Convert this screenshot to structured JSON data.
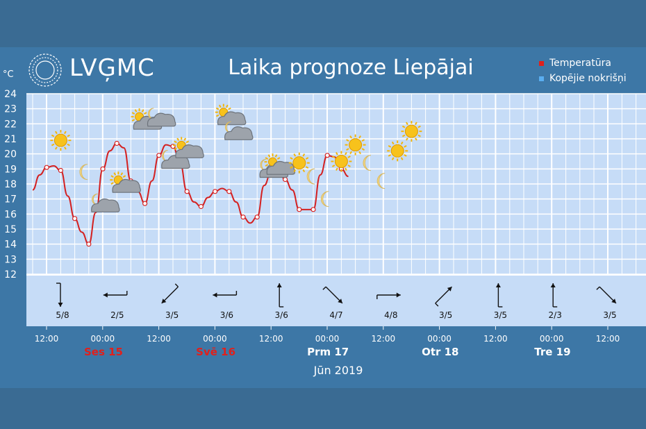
{
  "header": {
    "logo_text": "LVĢMC",
    "title": "Laika prognoze Liepājai",
    "unit": "°C",
    "legend": [
      {
        "label": "Temperatūra",
        "color": "#e0201c"
      },
      {
        "label": "Kopējie nokrišņi",
        "color": "#5aaef0"
      }
    ]
  },
  "chart_data": {
    "type": "line",
    "ylim": [
      12,
      24
    ],
    "yticks": [
      12,
      13,
      14,
      15,
      16,
      17,
      18,
      19,
      20,
      21,
      22,
      23,
      24
    ],
    "series": [
      {
        "name": "Temperatūra",
        "color": "#d42020",
        "x": [
          0.0,
          0.5,
          1.0,
          1.5,
          2.0,
          2.5,
          3.0,
          3.5,
          4.0,
          4.5,
          5.0,
          5.5,
          6.0,
          6.5,
          7.0,
          7.5,
          8.0,
          8.5,
          9.0,
          9.5,
          10.0,
          10.5,
          11.0,
          11.5,
          12.0,
          12.5,
          13.0,
          13.5,
          14.0,
          14.5,
          15.0,
          15.5,
          16.0,
          16.5,
          17.0,
          17.5,
          18.0,
          18.5,
          19.0,
          19.5,
          20.0,
          20.5,
          21.0,
          21.5,
          22.0,
          22.5
        ],
        "values": [
          17.6,
          18.6,
          19.1,
          19.2,
          18.9,
          17.2,
          15.7,
          14.8,
          14.0,
          16.1,
          19.0,
          20.2,
          20.7,
          20.4,
          18.2,
          17.5,
          16.7,
          18.2,
          19.9,
          20.6,
          20.5,
          19.4,
          17.5,
          16.8,
          16.5,
          17.1,
          17.5,
          17.7,
          17.5,
          16.8,
          15.8,
          15.4,
          15.8,
          17.9,
          18.8,
          18.9,
          18.3,
          17.6,
          16.3,
          16.3,
          16.3,
          18.6,
          19.9,
          19.8,
          19.0,
          18.5
        ],
        "markers": [
          2,
          4,
          6,
          8,
          10,
          12,
          14,
          16,
          18,
          20,
          22,
          24,
          26,
          28,
          30,
          32,
          34,
          36,
          38,
          40,
          42,
          44
        ]
      }
    ],
    "x_time_labels": [
      "12:00",
      "00:00",
      "12:00",
      "00:00",
      "12:00",
      "00:00",
      "12:00",
      "00:00",
      "12:00",
      "00:00",
      "12:00"
    ],
    "day_labels": [
      {
        "label": "Ses 15",
        "color": "#e0201c"
      },
      {
        "label": "Svē 16",
        "color": "#e0201c"
      },
      {
        "label": "Prm 17",
        "color": "#ffffff"
      },
      {
        "label": "Otr 18",
        "color": "#ffffff"
      },
      {
        "label": "Tre 19",
        "color": "#ffffff"
      }
    ],
    "month_label": "Jūn 2019",
    "weather_icons": [
      {
        "x": 2.0,
        "y": 20.9,
        "icon": "sun-icon"
      },
      {
        "x": 3.8,
        "y": 18.8,
        "icon": "moon-icon"
      },
      {
        "x": 5.0,
        "y": 16.6,
        "icon": "moon-cloud-icon"
      },
      {
        "x": 6.5,
        "y": 17.9,
        "icon": "sun-cloud-icon"
      },
      {
        "x": 8.0,
        "y": 22.1,
        "icon": "sun-cloud-icon"
      },
      {
        "x": 9.0,
        "y": 22.3,
        "icon": "moon-cloud-icon"
      },
      {
        "x": 10.0,
        "y": 19.5,
        "icon": "moon-cloud-icon"
      },
      {
        "x": 11.0,
        "y": 20.2,
        "icon": "sun-cloud-icon"
      },
      {
        "x": 14.0,
        "y": 22.4,
        "icon": "sun-cloud-icon"
      },
      {
        "x": 14.5,
        "y": 21.4,
        "icon": "moon-cloud-icon"
      },
      {
        "x": 17.0,
        "y": 18.9,
        "icon": "moon-cloud-icon"
      },
      {
        "x": 17.5,
        "y": 19.1,
        "icon": "sun-cloud-icon"
      },
      {
        "x": 19.0,
        "y": 19.4,
        "icon": "sun-icon"
      },
      {
        "x": 20.0,
        "y": 18.5,
        "icon": "moon-icon"
      },
      {
        "x": 21.0,
        "y": 17.0,
        "icon": "moon-icon"
      },
      {
        "x": 22.0,
        "y": 19.5,
        "icon": "sun-icon"
      },
      {
        "x": 23.0,
        "y": 20.6,
        "icon": "sun-icon"
      },
      {
        "x": 24.0,
        "y": 19.4,
        "icon": "moon-icon"
      },
      {
        "x": 25.0,
        "y": 18.2,
        "icon": "moon-icon"
      },
      {
        "x": 26.0,
        "y": 20.2,
        "icon": "sun-icon"
      },
      {
        "x": 27.0,
        "y": 21.5,
        "icon": "sun-icon"
      }
    ],
    "wind": [
      {
        "label": "5/8",
        "dir": "s"
      },
      {
        "label": "2/5",
        "dir": "w"
      },
      {
        "label": "3/5",
        "dir": "sw"
      },
      {
        "label": "3/6",
        "dir": "w"
      },
      {
        "label": "3/6",
        "dir": "n"
      },
      {
        "label": "4/7",
        "dir": "se"
      },
      {
        "label": "4/8",
        "dir": "e"
      },
      {
        "label": "3/5",
        "dir": "ne"
      },
      {
        "label": "3/5",
        "dir": "n"
      },
      {
        "label": "2/3",
        "dir": "n"
      },
      {
        "label": "3/5",
        "dir": "se"
      }
    ]
  }
}
